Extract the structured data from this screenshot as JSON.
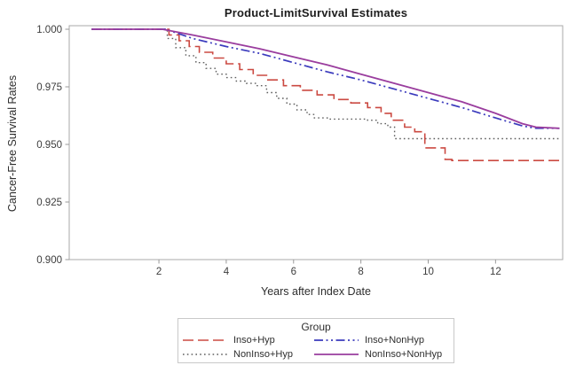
{
  "chart_data": {
    "type": "line",
    "title": "Product-LimitSurvival Estimates",
    "xlabel": "Years after Index Date",
    "ylabel": "Cancer-Free Survival Rates",
    "xlim": [
      -0.7,
      14.05
    ],
    "ylim": [
      0.9,
      1.0
    ],
    "x_ticks": [
      2,
      4,
      6,
      8,
      10,
      12
    ],
    "y_ticks": [
      1.0,
      0.975,
      0.95,
      0.925,
      0.9
    ],
    "y_tick_labels": [
      "1.000",
      "0.975",
      "0.950",
      "0.925",
      "0.900"
    ],
    "grid": false,
    "frame_color": "#a9a9a9",
    "tick_color": "#9a9a9a",
    "legend": {
      "title": "Group",
      "position": "bottom"
    },
    "series": [
      {
        "name": "Inso+Hyp",
        "color": "#cb4a42",
        "dash": "dash",
        "render": "step",
        "points": [
          [
            0,
            1.0
          ],
          [
            2.1,
            1.0
          ],
          [
            2.3,
            0.9975
          ],
          [
            2.6,
            0.995
          ],
          [
            2.9,
            0.9925
          ],
          [
            3.2,
            0.99
          ],
          [
            3.6,
            0.9875
          ],
          [
            4.0,
            0.985
          ],
          [
            4.4,
            0.9825
          ],
          [
            4.8,
            0.98
          ],
          [
            5.2,
            0.978
          ],
          [
            5.7,
            0.9755
          ],
          [
            6.2,
            0.9735
          ],
          [
            6.7,
            0.9715
          ],
          [
            7.2,
            0.9695
          ],
          [
            7.7,
            0.968
          ],
          [
            8.2,
            0.966
          ],
          [
            8.6,
            0.9635
          ],
          [
            8.9,
            0.9605
          ],
          [
            9.3,
            0.9575
          ],
          [
            9.6,
            0.9555
          ],
          [
            9.9,
            0.9485
          ],
          [
            10.5,
            0.9435
          ],
          [
            10.7,
            0.943
          ],
          [
            13.9,
            0.943
          ]
        ]
      },
      {
        "name": "Inso+NonHyp",
        "color": "#3b3bbd",
        "dash": "dash-dot-dot",
        "render": "line",
        "points": [
          [
            0,
            1.0
          ],
          [
            2.2,
            1.0
          ],
          [
            3,
            0.996
          ],
          [
            4,
            0.9925
          ],
          [
            5,
            0.9895
          ],
          [
            6,
            0.9855
          ],
          [
            7,
            0.9815
          ],
          [
            8,
            0.978
          ],
          [
            9,
            0.974
          ],
          [
            10,
            0.97
          ],
          [
            11,
            0.966
          ],
          [
            12,
            0.9615
          ],
          [
            12.8,
            0.958
          ],
          [
            13.2,
            0.957
          ],
          [
            13.9,
            0.957
          ]
        ]
      },
      {
        "name": "NonInso+Hyp",
        "color": "#5f5f5f",
        "dash": "dot",
        "render": "step",
        "points": [
          [
            0,
            1.0
          ],
          [
            2.05,
            1.0
          ],
          [
            2.25,
            0.996
          ],
          [
            2.5,
            0.992
          ],
          [
            2.8,
            0.9885
          ],
          [
            3.1,
            0.9855
          ],
          [
            3.4,
            0.983
          ],
          [
            3.7,
            0.9805
          ],
          [
            4.0,
            0.979
          ],
          [
            4.3,
            0.9775
          ],
          [
            4.6,
            0.9765
          ],
          [
            4.9,
            0.9755
          ],
          [
            5.2,
            0.9725
          ],
          [
            5.5,
            0.97
          ],
          [
            5.8,
            0.9675
          ],
          [
            6.1,
            0.965
          ],
          [
            6.4,
            0.963
          ],
          [
            6.6,
            0.9615
          ],
          [
            7.0,
            0.961
          ],
          [
            8.2,
            0.9605
          ],
          [
            8.5,
            0.959
          ],
          [
            8.8,
            0.9575
          ],
          [
            9.0,
            0.9525
          ],
          [
            13.9,
            0.952
          ]
        ]
      },
      {
        "name": "NonInso+NonHyp",
        "color": "#9a3d9e",
        "dash": "solid",
        "render": "line",
        "points": [
          [
            0,
            1.0
          ],
          [
            2.1,
            1.0
          ],
          [
            3,
            0.9975
          ],
          [
            4,
            0.9945
          ],
          [
            5,
            0.9915
          ],
          [
            6,
            0.988
          ],
          [
            7,
            0.9845
          ],
          [
            8,
            0.9805
          ],
          [
            9,
            0.9765
          ],
          [
            10,
            0.9725
          ],
          [
            11,
            0.9685
          ],
          [
            12,
            0.9635
          ],
          [
            12.8,
            0.959
          ],
          [
            13.2,
            0.9575
          ],
          [
            13.9,
            0.957
          ]
        ]
      }
    ]
  }
}
